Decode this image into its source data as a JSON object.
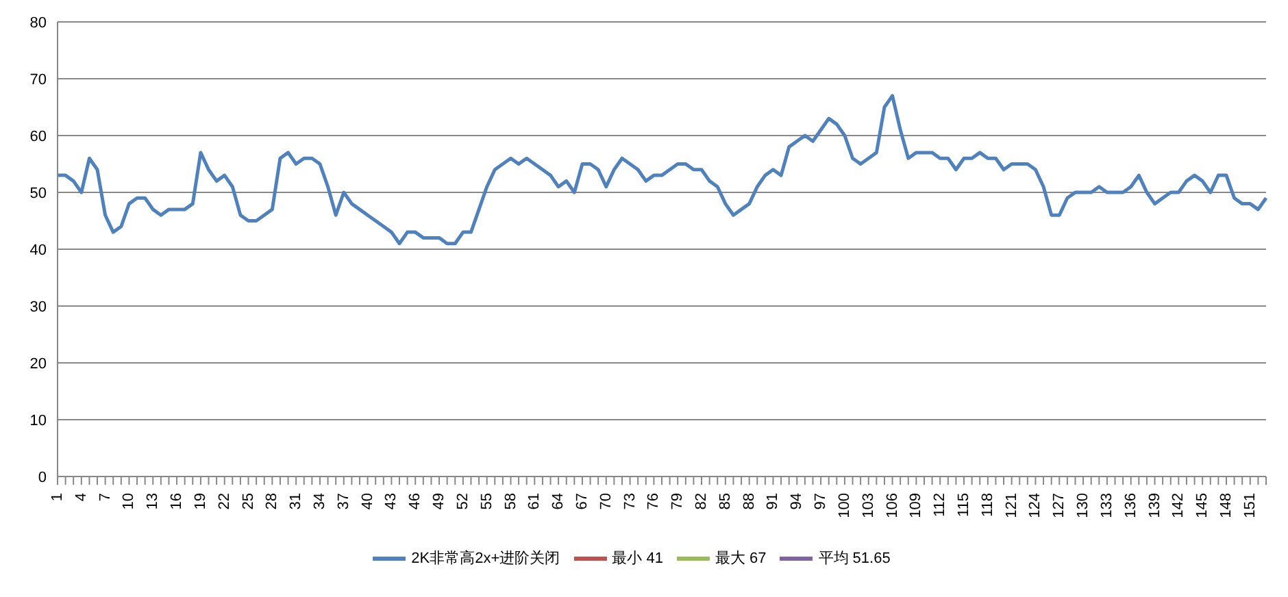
{
  "chart_data": {
    "type": "line",
    "categories": [
      "1",
      null,
      null,
      "4",
      null,
      null,
      "7",
      null,
      null,
      "10",
      null,
      null,
      "13",
      null,
      null,
      "16",
      null,
      null,
      "19",
      null,
      null,
      "22",
      null,
      null,
      "25",
      null,
      null,
      "28",
      null,
      null,
      "31",
      null,
      null,
      "34",
      null,
      null,
      "37",
      null,
      null,
      "40",
      null,
      null,
      "43",
      null,
      null,
      "46",
      null,
      null,
      "49",
      null,
      null,
      "52",
      null,
      null,
      "55",
      null,
      null,
      "58",
      null,
      null,
      "61",
      null,
      null,
      "64",
      null,
      null,
      "67",
      null,
      null,
      "70",
      null,
      null,
      "73",
      null,
      null,
      "76",
      null,
      null,
      "79",
      null,
      null,
      "82",
      null,
      null,
      "85",
      null,
      null,
      "88",
      null,
      null,
      "91",
      null,
      null,
      "94",
      null,
      null,
      "97",
      null,
      null,
      "100",
      null,
      null,
      "103",
      null,
      null,
      "106",
      null,
      null,
      "109",
      null,
      null,
      "112",
      null,
      null,
      "115",
      null,
      null,
      "118",
      null,
      null,
      "121",
      null,
      null,
      "124",
      null,
      null,
      "127",
      null,
      null,
      "130",
      null,
      null,
      "133",
      null,
      null,
      "136",
      null,
      null,
      "139",
      null,
      null,
      "142",
      null,
      null,
      "145",
      null,
      null,
      "148",
      null,
      null,
      "151",
      null,
      null
    ],
    "series": [
      {
        "name": "2K非常高2x+进阶关闭",
        "color": "#4f81bd",
        "values": [
          53,
          53,
          52,
          50,
          56,
          54,
          46,
          43,
          44,
          48,
          49,
          49,
          47,
          46,
          47,
          47,
          47,
          48,
          57,
          54,
          52,
          53,
          51,
          46,
          45,
          45,
          46,
          47,
          56,
          57,
          55,
          56,
          56,
          55,
          51,
          46,
          50,
          48,
          47,
          46,
          45,
          44,
          43,
          41,
          43,
          43,
          42,
          42,
          42,
          41,
          41,
          43,
          43,
          47,
          51,
          54,
          55,
          56,
          55,
          56,
          55,
          54,
          53,
          51,
          52,
          50,
          55,
          55,
          54,
          51,
          54,
          56,
          55,
          54,
          52,
          53,
          53,
          54,
          55,
          55,
          54,
          54,
          52,
          51,
          48,
          46,
          47,
          48,
          51,
          53,
          54,
          53,
          58,
          59,
          60,
          59,
          61,
          63,
          62,
          60,
          56,
          55,
          56,
          57,
          65,
          67,
          61,
          56,
          57,
          57,
          57,
          56,
          56,
          54,
          56,
          56,
          57,
          56,
          56,
          54,
          55,
          55,
          55,
          54,
          51,
          46,
          46,
          49,
          50,
          50,
          50,
          51,
          50,
          50,
          50,
          51,
          53,
          50,
          48,
          49,
          50,
          50,
          52,
          53,
          52,
          50,
          53,
          53,
          49,
          48,
          48,
          47,
          49
        ]
      },
      {
        "name": "最小 41",
        "color": "#c0504d",
        "values": [
          null,
          null,
          null,
          null,
          null,
          null,
          null,
          null,
          null,
          null,
          null,
          null,
          null,
          null,
          null,
          null,
          null,
          null,
          null,
          null,
          null,
          null,
          null,
          null,
          null,
          null,
          null,
          null,
          null,
          null,
          null,
          null,
          null,
          null,
          null,
          null,
          null,
          null,
          null,
          null,
          null,
          null,
          null,
          null,
          null,
          null,
          null,
          null,
          null,
          null,
          null,
          null,
          null,
          null,
          null,
          null,
          null,
          null,
          null,
          null,
          null,
          null,
          null,
          null,
          null,
          null,
          null,
          null,
          null,
          null,
          null,
          null,
          null,
          null,
          null,
          null,
          null,
          null,
          null,
          null,
          null,
          null,
          null,
          null,
          null,
          null,
          null,
          null,
          null,
          null,
          null,
          null,
          null,
          null,
          null,
          null,
          null,
          null,
          null,
          null,
          null,
          null,
          null,
          null,
          null,
          null,
          null,
          null,
          null,
          null,
          null,
          null,
          null,
          null,
          null,
          null,
          null,
          null,
          null,
          null,
          null,
          null,
          null,
          null,
          null,
          null,
          null,
          null,
          null,
          null,
          null,
          null,
          null,
          null,
          null,
          null,
          null,
          null,
          null,
          null,
          null,
          null,
          null,
          null,
          null,
          null,
          null,
          null,
          null,
          null,
          null,
          null,
          null
        ]
      },
      {
        "name": "最大 67",
        "color": "#9bbb59",
        "values": [
          null,
          null,
          null,
          null,
          null,
          null,
          null,
          null,
          null,
          null,
          null,
          null,
          null,
          null,
          null,
          null,
          null,
          null,
          null,
          null,
          null,
          null,
          null,
          null,
          null,
          null,
          null,
          null,
          null,
          null,
          null,
          null,
          null,
          null,
          null,
          null,
          null,
          null,
          null,
          null,
          null,
          null,
          null,
          null,
          null,
          null,
          null,
          null,
          null,
          null,
          null,
          null,
          null,
          null,
          null,
          null,
          null,
          null,
          null,
          null,
          null,
          null,
          null,
          null,
          null,
          null,
          null,
          null,
          null,
          null,
          null,
          null,
          null,
          null,
          null,
          null,
          null,
          null,
          null,
          null,
          null,
          null,
          null,
          null,
          null,
          null,
          null,
          null,
          null,
          null,
          null,
          null,
          null,
          null,
          null,
          null,
          null,
          null,
          null,
          null,
          null,
          null,
          null,
          null,
          null,
          null,
          null,
          null,
          null,
          null,
          null,
          null,
          null,
          null,
          null,
          null,
          null,
          null,
          null,
          null,
          null,
          null,
          null,
          null,
          null,
          null,
          null,
          null,
          null,
          null,
          null,
          null,
          null,
          null,
          null,
          null,
          null,
          null,
          null,
          null,
          null,
          null,
          null,
          null,
          null,
          null,
          null,
          null,
          null,
          null,
          null,
          null,
          null
        ]
      },
      {
        "name": "平均 51.65",
        "color": "#8064a2",
        "values": [
          null,
          null,
          null,
          null,
          null,
          null,
          null,
          null,
          null,
          null,
          null,
          null,
          null,
          null,
          null,
          null,
          null,
          null,
          null,
          null,
          null,
          null,
          null,
          null,
          null,
          null,
          null,
          null,
          null,
          null,
          null,
          null,
          null,
          null,
          null,
          null,
          null,
          null,
          null,
          null,
          null,
          null,
          null,
          null,
          null,
          null,
          null,
          null,
          null,
          null,
          null,
          null,
          null,
          null,
          null,
          null,
          null,
          null,
          null,
          null,
          null,
          null,
          null,
          null,
          null,
          null,
          null,
          null,
          null,
          null,
          null,
          null,
          null,
          null,
          null,
          null,
          null,
          null,
          null,
          null,
          null,
          null,
          null,
          null,
          null,
          null,
          null,
          null,
          null,
          null,
          null,
          null,
          null,
          null,
          null,
          null,
          null,
          null,
          null,
          null,
          null,
          null,
          null,
          null,
          null,
          null,
          null,
          null,
          null,
          null,
          null,
          null,
          null,
          null,
          null,
          null,
          null,
          null,
          null,
          null,
          null,
          null,
          null,
          null,
          null,
          null,
          null,
          null,
          null,
          null,
          null,
          null,
          null,
          null,
          null,
          null,
          null,
          null,
          null,
          null,
          null,
          null,
          null,
          null,
          null,
          null,
          null,
          null,
          null,
          null,
          null,
          null,
          null
        ]
      }
    ],
    "ylim": [
      0,
      80
    ],
    "yticks": [
      0,
      10,
      20,
      30,
      40,
      50,
      60,
      70,
      80
    ],
    "grid": "y",
    "legend": "bottom",
    "marker": "none",
    "line_style": "solid"
  }
}
